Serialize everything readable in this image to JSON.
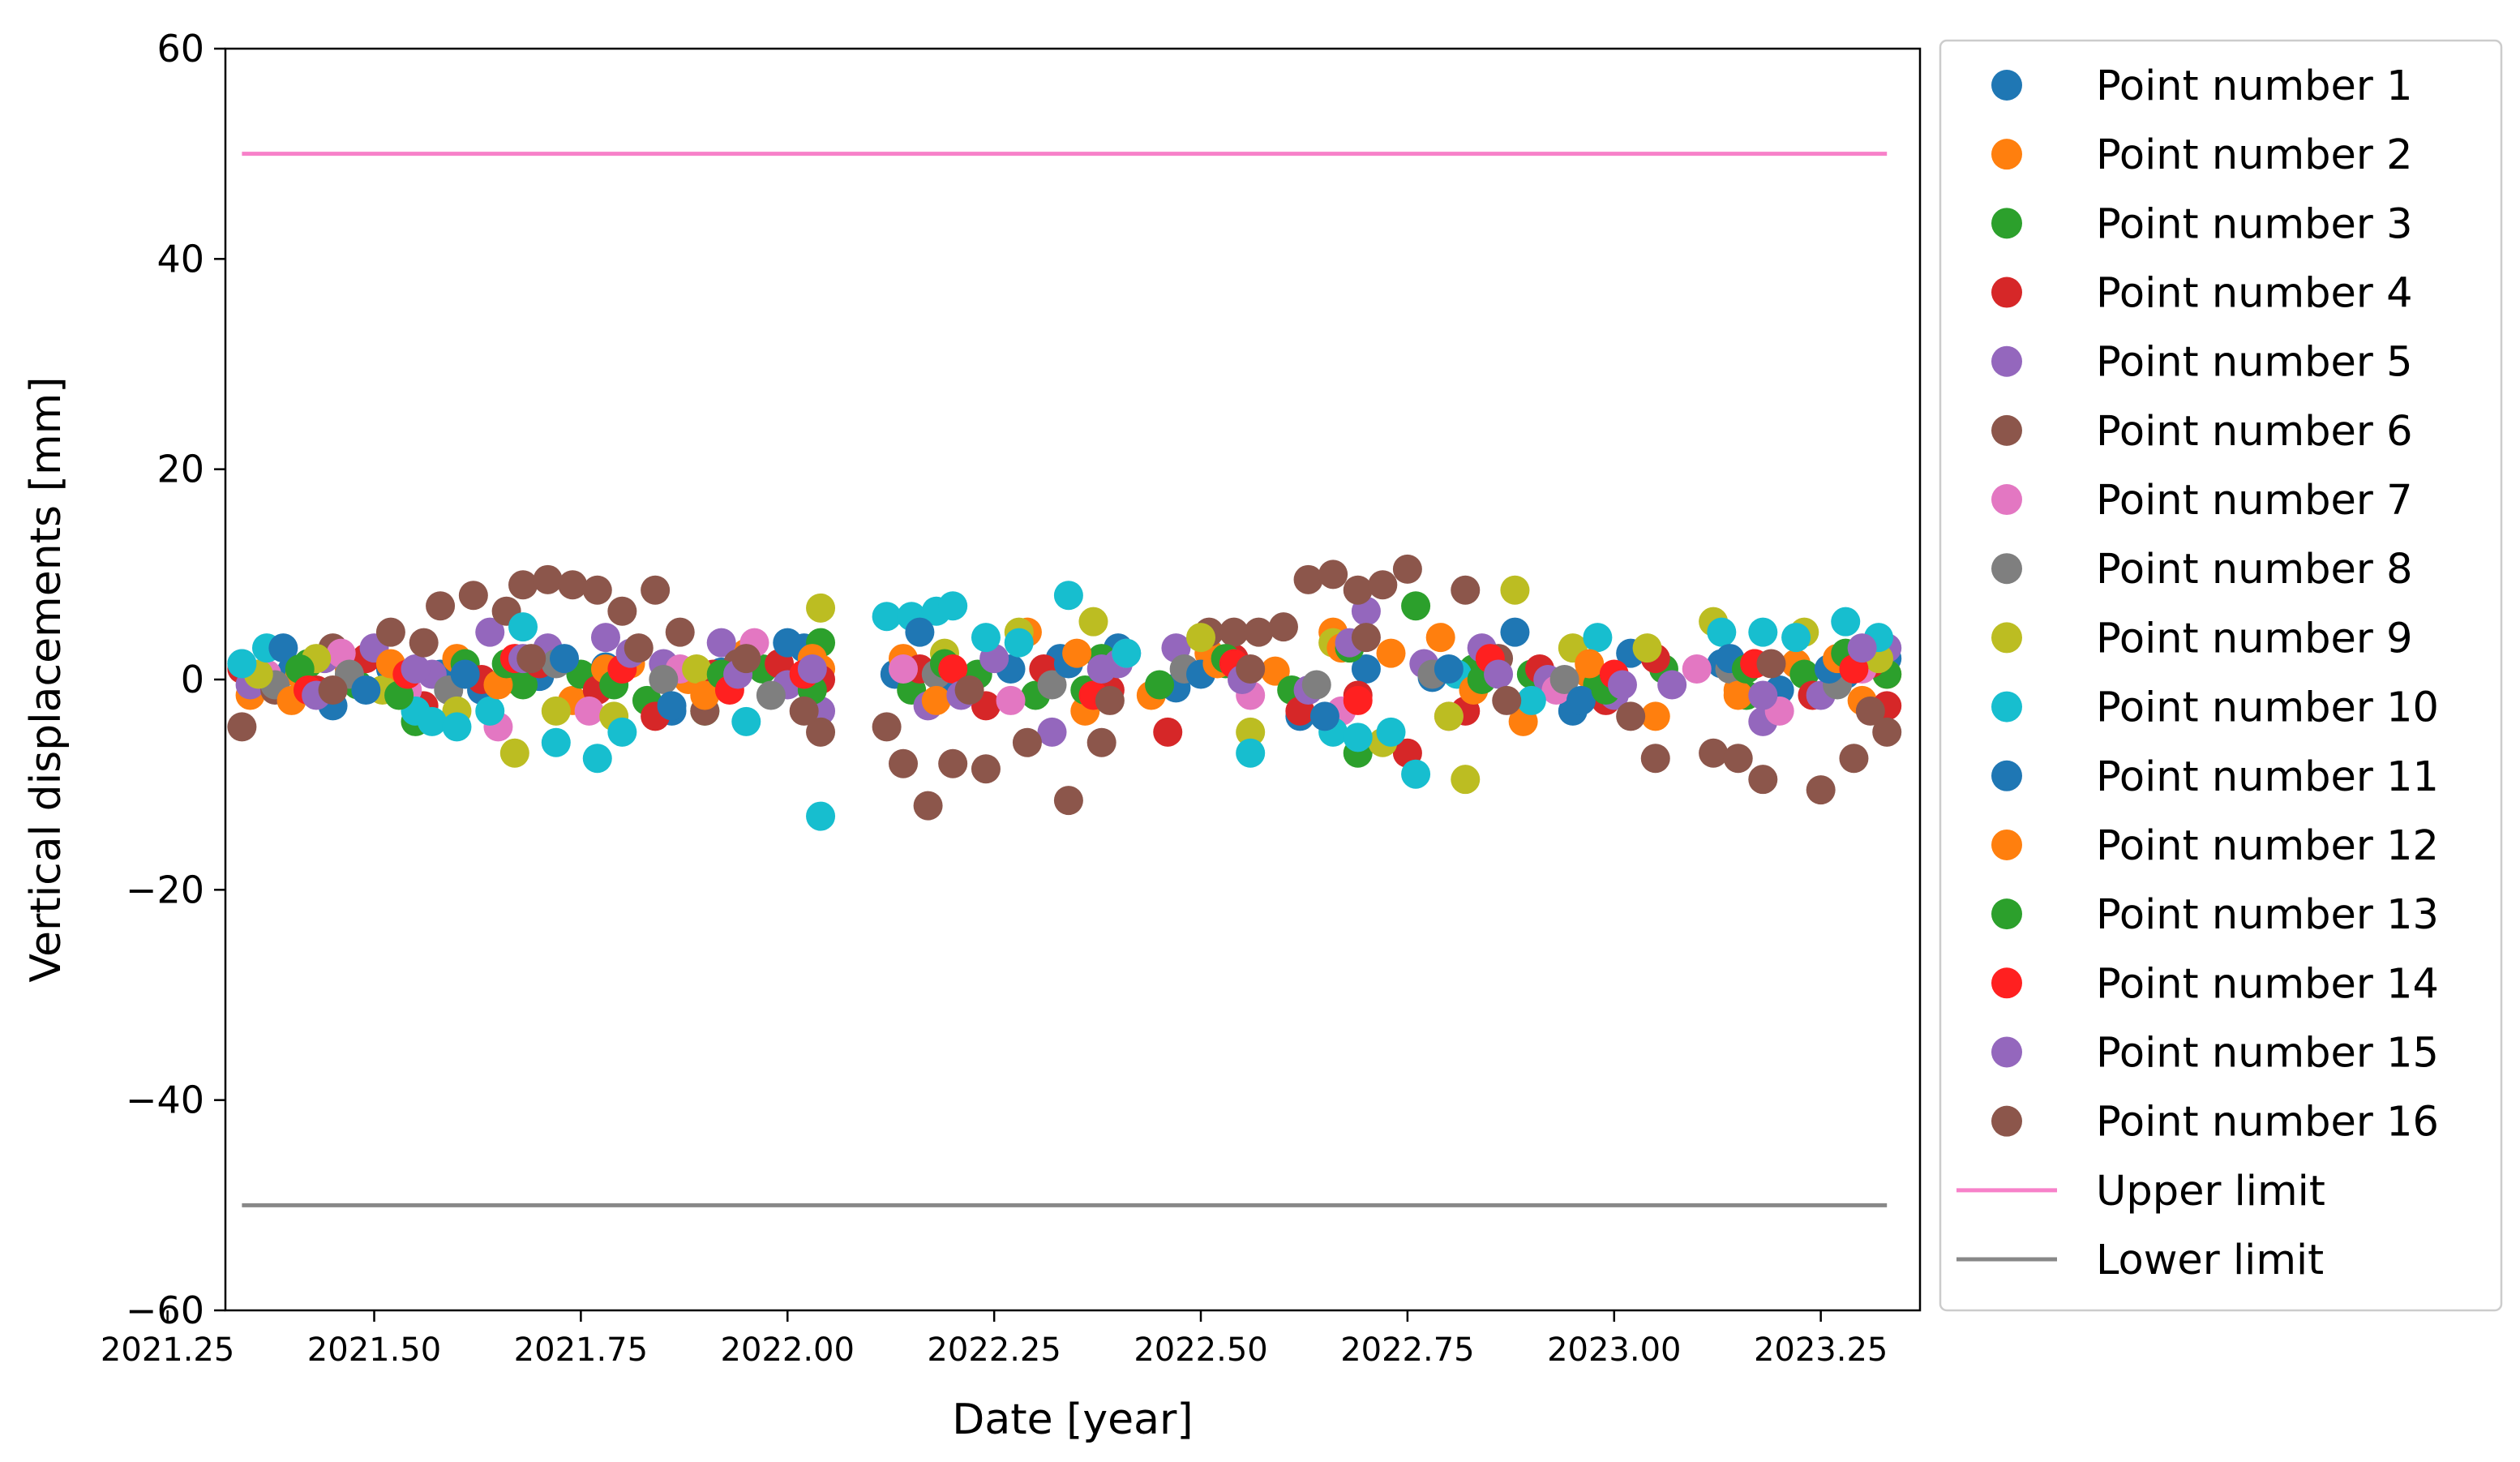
{
  "chart_data": {
    "type": "scatter",
    "title": "",
    "xlabel": "Date [year]",
    "ylabel": "Vertical displacements [mm]",
    "xlim": [
      2021.32,
      2023.37
    ],
    "ylim": [
      -60,
      60
    ],
    "xticks": [
      2021.25,
      2021.5,
      2021.75,
      2022.0,
      2022.25,
      2022.5,
      2022.75,
      2023.0,
      2023.25
    ],
    "xtick_labels": [
      "2021.25",
      "2021.50",
      "2021.75",
      "2022.00",
      "2022.25",
      "2022.50",
      "2022.75",
      "2023.00",
      "2023.25"
    ],
    "yticks": [
      -60,
      -40,
      -20,
      0,
      20,
      40,
      60
    ],
    "ytick_labels": [
      "−60",
      "−40",
      "−20",
      "0",
      "20",
      "40",
      "60"
    ],
    "grid": false,
    "legend_position": "outside-right",
    "series": [
      {
        "name": "Point number 1",
        "color": "#1f77b4",
        "x": [
          2021.34,
          2021.4,
          2021.45,
          2021.52,
          2021.58,
          2021.63,
          2021.7,
          2021.78,
          2021.86,
          2021.92,
          2022.02,
          2022.13,
          2022.2,
          2022.27,
          2022.33,
          2022.4,
          2022.47,
          2022.55,
          2022.62,
          2022.7,
          2022.78,
          2022.88,
          2022.95,
          2023.02,
          2023.13,
          2023.2,
          2023.28,
          2023.33
        ],
        "y": [
          1.5,
          0.8,
          -2.5,
          1.0,
          0.5,
          -1.0,
          0.3,
          1.2,
          -3.0,
          0.7,
          3.0,
          0.5,
          -0.5,
          1.0,
          2.0,
          3.0,
          -0.8,
          0.5,
          -3.5,
          1.0,
          0.2,
          4.5,
          -3.0,
          2.5,
          1.5,
          -1.0,
          0.5,
          2.0
        ]
      },
      {
        "name": "Point number 2",
        "color": "#ff7f0e",
        "x": [
          2021.35,
          2021.41,
          2021.47,
          2021.53,
          2021.6,
          2021.67,
          2021.74,
          2021.81,
          2021.88,
          2021.95,
          2022.04,
          2022.14,
          2022.22,
          2022.29,
          2022.36,
          2022.44,
          2022.51,
          2022.59,
          2022.66,
          2022.73,
          2022.79,
          2022.89,
          2022.97,
          2023.05,
          2023.15,
          2023.22,
          2023.3,
          2023.33
        ],
        "y": [
          -1.5,
          0.5,
          1.0,
          -1.0,
          2.0,
          0.0,
          -2.0,
          1.5,
          0.0,
          2.5,
          1.0,
          2.0,
          -1.0,
          4.5,
          -3.0,
          -1.5,
          2.5,
          0.8,
          4.5,
          2.5,
          4.0,
          -4.0,
          0.5,
          -3.5,
          -1.0,
          1.5,
          -2.0,
          0.5
        ]
      },
      {
        "name": "Point number 3",
        "color": "#2ca02c",
        "x": [
          2021.36,
          2021.42,
          2021.48,
          2021.55,
          2021.61,
          2021.68,
          2021.75,
          2021.83,
          2021.9,
          2021.97,
          2022.04,
          2022.15,
          2022.23,
          2022.3,
          2022.38,
          2022.45,
          2022.53,
          2022.61,
          2022.69,
          2022.76,
          2022.83,
          2022.9,
          2022.98,
          2023.06,
          2023.16,
          2023.23,
          2023.31,
          2023.33
        ],
        "y": [
          0.5,
          1.5,
          -0.5,
          -4.0,
          1.5,
          -0.5,
          0.5,
          -2.0,
          -3.0,
          1.0,
          3.5,
          -1.0,
          0.5,
          -1.5,
          2.0,
          -0.5,
          1.5,
          -1.0,
          -7.0,
          7.0,
          1.0,
          0.5,
          -0.5,
          1.0,
          -1.5,
          0.5,
          2.5,
          0.5
        ]
      },
      {
        "name": "Point number 4",
        "color": "#d62728",
        "x": [
          2021.34,
          2021.43,
          2021.49,
          2021.56,
          2021.63,
          2021.7,
          2021.77,
          2021.84,
          2021.91,
          2021.99,
          2022.04,
          2022.16,
          2022.24,
          2022.31,
          2022.39,
          2022.46,
          2022.54,
          2022.62,
          2022.69,
          2022.75,
          2022.82,
          2022.91,
          2022.99,
          2023.05,
          2023.17,
          2023.24,
          2023.31,
          2023.33
        ],
        "y": [
          1.0,
          -1.0,
          2.0,
          -2.5,
          0.0,
          1.5,
          -1.0,
          -3.5,
          0.5,
          1.5,
          0.0,
          1.0,
          -2.5,
          1.0,
          -1.0,
          -5.0,
          2.0,
          -3.0,
          -1.5,
          -7.0,
          -3.0,
          1.0,
          -2.0,
          2.0,
          1.5,
          -1.5,
          1.5,
          -2.5
        ]
      },
      {
        "name": "Point number 5",
        "color": "#9467bd",
        "x": [
          2021.35,
          2021.44,
          2021.5,
          2021.57,
          2021.64,
          2021.71,
          2021.78,
          2021.85,
          2021.92,
          2022.0,
          2022.04,
          2022.17,
          2022.25,
          2022.32,
          2022.4,
          2022.47,
          2022.55,
          2022.63,
          2022.7,
          2022.77,
          2022.84,
          2022.92,
          2023.0,
          2023.07,
          2023.18,
          2023.25,
          2023.32,
          2023.33
        ],
        "y": [
          -0.5,
          2.0,
          3.0,
          0.5,
          4.5,
          3.0,
          4.0,
          1.5,
          3.5,
          -0.5,
          -3.0,
          -2.5,
          2.0,
          -5.0,
          1.5,
          3.0,
          0.5,
          -1.0,
          6.5,
          1.5,
          3.0,
          0.0,
          -1.5,
          -0.5,
          -4.0,
          -1.5,
          2.5,
          3.0
        ]
      },
      {
        "name": "Point number 6",
        "color": "#8c564b",
        "x": [
          2021.34,
          2021.38,
          2021.45,
          2021.52,
          2021.58,
          2021.62,
          2021.66,
          2021.68,
          2021.71,
          2021.74,
          2021.77,
          2021.8,
          2021.84,
          2021.87,
          2021.9,
          2021.94,
          2022.04,
          2022.12,
          2022.14,
          2022.17,
          2022.2,
          2022.24,
          2022.29,
          2022.34,
          2022.38,
          2022.51,
          2022.54,
          2022.57,
          2022.6,
          2022.63,
          2022.66,
          2022.69,
          2022.72,
          2022.75,
          2022.82,
          2022.86,
          2023.05,
          2023.12,
          2023.15,
          2023.18,
          2023.25,
          2023.29,
          2023.33
        ],
        "y": [
          -4.5,
          -1.0,
          3.0,
          4.5,
          7.0,
          8.0,
          6.5,
          9.0,
          9.5,
          9.0,
          8.5,
          6.5,
          8.5,
          4.5,
          -3.0,
          1.5,
          -5.0,
          -4.5,
          -8.0,
          -12.0,
          -8.0,
          -8.5,
          -6.0,
          -11.5,
          -6.0,
          4.5,
          4.5,
          4.5,
          5.0,
          9.5,
          10.0,
          8.5,
          9.0,
          10.5,
          8.5,
          2.0,
          -7.5,
          -7.0,
          -7.5,
          -9.5,
          -10.5,
          -7.5,
          -5.0
        ]
      },
      {
        "name": "Point number 7",
        "color": "#e377c2",
        "x": [
          2021.37,
          2021.46,
          2021.54,
          2021.65,
          2021.76,
          2021.87,
          2021.96,
          2022.14,
          2022.27,
          2022.41,
          2022.56,
          2022.67,
          2022.8,
          2022.93,
          2023.1,
          2023.2,
          2023.3
        ],
        "y": [
          0.5,
          2.5,
          -1.0,
          -4.5,
          -3.0,
          1.0,
          3.5,
          1.0,
          -2.0,
          2.5,
          -1.5,
          -3.0,
          -3.5,
          -1.0,
          1.0,
          -3.0,
          1.0
        ]
      },
      {
        "name": "Point number 8",
        "color": "#7f7f7f",
        "x": [
          2021.38,
          2021.47,
          2021.59,
          2021.72,
          2021.85,
          2021.98,
          2022.18,
          2022.32,
          2022.48,
          2022.64,
          2022.78,
          2022.94,
          2023.14,
          2023.27
        ],
        "y": [
          -0.5,
          0.5,
          -1.0,
          1.5,
          0.0,
          -1.5,
          0.5,
          -0.5,
          1.0,
          -0.5,
          0.5,
          0.0,
          1.0,
          -0.5
        ]
      },
      {
        "name": "Point number 9",
        "color": "#bcbd22",
        "x": [
          2021.36,
          2021.43,
          2021.51,
          2021.6,
          2021.67,
          2021.72,
          2021.79,
          2021.89,
          2022.04,
          2022.19,
          2022.28,
          2022.37,
          2022.5,
          2022.56,
          2022.66,
          2022.72,
          2022.8,
          2022.82,
          2022.88,
          2022.95,
          2023.04,
          2023.12,
          2023.23,
          2023.32
        ],
        "y": [
          0.5,
          2.0,
          -1.0,
          -3.0,
          -7.0,
          -3.0,
          -3.5,
          1.0,
          6.8,
          2.5,
          4.5,
          5.5,
          4.0,
          -5.0,
          3.5,
          -6.0,
          -3.5,
          -9.5,
          8.5,
          3.0,
          3.0,
          5.5,
          4.5,
          2.0
        ]
      },
      {
        "name": "Point number 10",
        "color": "#17becf",
        "x": [
          2021.34,
          2021.37,
          2021.55,
          2021.57,
          2021.6,
          2021.64,
          2021.68,
          2021.72,
          2021.77,
          2021.8,
          2021.95,
          2022.04,
          2022.12,
          2022.15,
          2022.18,
          2022.2,
          2022.24,
          2022.28,
          2022.34,
          2022.41,
          2022.56,
          2022.66,
          2022.69,
          2022.73,
          2022.76,
          2022.81,
          2022.9,
          2022.98,
          2023.13,
          2023.18,
          2023.22,
          2023.28,
          2023.32
        ],
        "y": [
          1.5,
          3.0,
          -3.0,
          -4.0,
          -4.5,
          -3.0,
          5.0,
          -6.0,
          -7.5,
          -5.0,
          -4.0,
          -13.0,
          6.0,
          6.0,
          6.5,
          7.0,
          4.0,
          3.5,
          8.0,
          2.5,
          -7.0,
          -5.0,
          -5.5,
          -5.0,
          -9.0,
          0.5,
          -2.0,
          4.0,
          4.5,
          4.5,
          4.0,
          5.5,
          4.0
        ]
      },
      {
        "name": "Point number 11",
        "color": "#1f77b4",
        "x": [
          2021.39,
          2021.49,
          2021.61,
          2021.73,
          2021.86,
          2022.0,
          2022.16,
          2022.34,
          2022.5,
          2022.65,
          2022.8,
          2022.96,
          2023.14,
          2023.26
        ],
        "y": [
          3.0,
          -1.0,
          0.5,
          2.0,
          -2.5,
          3.5,
          4.5,
          1.5,
          0.5,
          -3.5,
          1.0,
          -2.0,
          2.0,
          1.0
        ]
      },
      {
        "name": "Point number 12",
        "color": "#ff7f0e",
        "x": [
          2021.4,
          2021.52,
          2021.65,
          2021.78,
          2021.9,
          2022.03,
          2022.18,
          2022.35,
          2022.52,
          2022.67,
          2022.83,
          2022.97,
          2023.15,
          2023.27
        ],
        "y": [
          -2.0,
          1.5,
          -0.5,
          1.0,
          -1.5,
          2.0,
          -2.0,
          2.5,
          1.5,
          3.0,
          -1.0,
          1.5,
          -1.5,
          2.0
        ]
      },
      {
        "name": "Point number 13",
        "color": "#2ca02c",
        "x": [
          2021.41,
          2021.53,
          2021.66,
          2021.79,
          2021.92,
          2022.03,
          2022.19,
          2022.36,
          2022.53,
          2022.68,
          2022.84,
          2022.99,
          2023.16,
          2023.28
        ],
        "y": [
          1.0,
          -1.5,
          1.5,
          -0.5,
          0.5,
          -1.0,
          1.5,
          -1.0,
          2.0,
          3.0,
          0.0,
          -1.0,
          1.0,
          2.5
        ]
      },
      {
        "name": "Point number 14",
        "color": "#ff2020",
        "x": [
          2021.42,
          2021.54,
          2021.67,
          2021.8,
          2021.93,
          2022.02,
          2022.2,
          2022.37,
          2022.54,
          2022.69,
          2022.85,
          2023.0,
          2023.17,
          2023.29
        ],
        "y": [
          -1.0,
          0.5,
          2.0,
          1.0,
          -1.0,
          0.5,
          1.0,
          -1.5,
          1.5,
          -2.0,
          2.0,
          0.5,
          1.5,
          1.0
        ]
      },
      {
        "name": "Point number 15",
        "color": "#9467bd",
        "x": [
          2021.43,
          2021.55,
          2021.68,
          2021.81,
          2021.94,
          2022.03,
          2022.21,
          2022.38,
          2022.55,
          2022.68,
          2022.86,
          2023.01,
          2023.18,
          2023.3
        ],
        "y": [
          -1.5,
          1.0,
          2.0,
          2.5,
          0.5,
          1.0,
          -1.5,
          1.0,
          0.0,
          3.5,
          0.5,
          -0.5,
          -1.5,
          3.0
        ]
      },
      {
        "name": "Point number 16",
        "color": "#8c564b",
        "x": [
          2021.45,
          2021.56,
          2021.69,
          2021.82,
          2021.95,
          2022.02,
          2022.22,
          2022.39,
          2022.56,
          2022.7,
          2022.87,
          2023.02,
          2023.19,
          2023.31
        ],
        "y": [
          -1.0,
          3.5,
          2.0,
          3.0,
          2.0,
          -3.0,
          -1.0,
          -2.0,
          1.0,
          4.0,
          -2.0,
          -3.5,
          1.5,
          -3.0
        ]
      }
    ],
    "lines": [
      {
        "name": "Upper limit",
        "color": "#f781c9",
        "x": [
          2021.34,
          2023.33
        ],
        "y": [
          50,
          50
        ]
      },
      {
        "name": "Lower limit",
        "color": "#888888",
        "x": [
          2021.34,
          2023.33
        ],
        "y": [
          -50,
          -50
        ]
      }
    ]
  }
}
